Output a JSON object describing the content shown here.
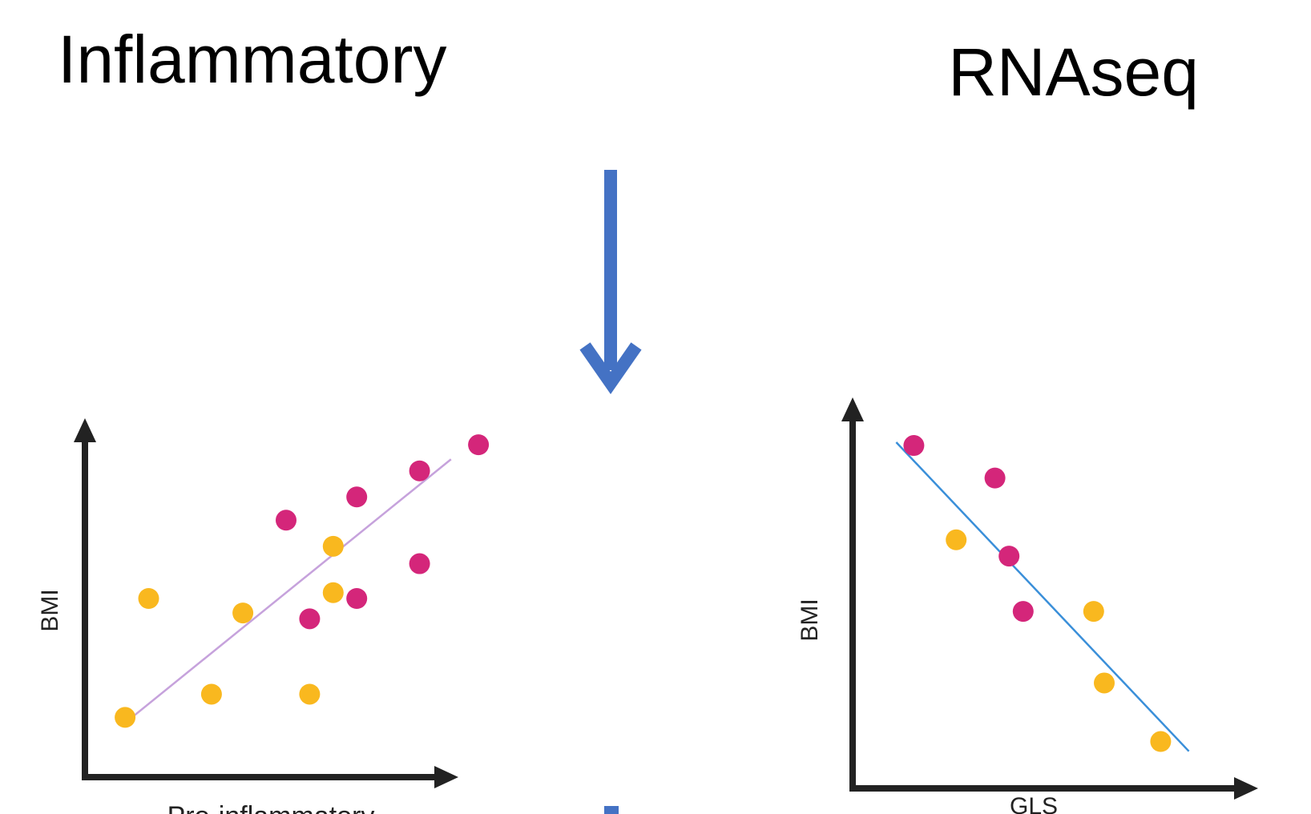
{
  "titles": {
    "left": "Inflammatory",
    "right": "RNAseq"
  },
  "colors": {
    "flow_arrow": "#4472c4",
    "axis": "#222222",
    "magenta": "#d4267a",
    "gold": "#f9b81f",
    "left_trend": "#c6a2dc",
    "right_trend": "#3a8fd9"
  },
  "chart_data": [
    {
      "type": "scatter",
      "xlabel": "Pro-inflammatory",
      "ylabel": "BMI",
      "xlim": [
        0,
        10
      ],
      "ylim": [
        0,
        10
      ],
      "series": [
        {
          "color": "magenta",
          "points": [
            [
              5.0,
              7.7
            ],
            [
              6.8,
              8.5
            ],
            [
              8.4,
              9.4
            ],
            [
              9.9,
              10.3
            ],
            [
              8.4,
              6.2
            ],
            [
              6.8,
              5.0
            ],
            [
              5.6,
              4.3
            ]
          ]
        },
        {
          "color": "gold",
          "points": [
            [
              0.9,
              0.9
            ],
            [
              1.5,
              5.0
            ],
            [
              3.9,
              4.5
            ],
            [
              6.2,
              6.8
            ],
            [
              6.2,
              5.2
            ],
            [
              3.1,
              1.7
            ],
            [
              5.6,
              1.7
            ]
          ]
        }
      ],
      "trend": {
        "from": [
          0.8,
          0.6
        ],
        "to": [
          9.2,
          9.8
        ]
      }
    },
    {
      "type": "scatter",
      "xlabel": "GLS",
      "ylabel": "BMI",
      "xlim": [
        0,
        10
      ],
      "ylim": [
        0,
        10
      ],
      "series": [
        {
          "color": "magenta",
          "points": [
            [
              1.6,
              9.9
            ],
            [
              3.9,
              8.9
            ],
            [
              4.3,
              6.5
            ],
            [
              4.7,
              4.8
            ]
          ]
        },
        {
          "color": "gold",
          "points": [
            [
              2.8,
              7.0
            ],
            [
              6.7,
              4.8
            ],
            [
              7.0,
              2.6
            ],
            [
              8.6,
              0.8
            ]
          ]
        }
      ],
      "trend": {
        "from": [
          1.1,
          10.0
        ],
        "to": [
          9.4,
          0.5
        ]
      }
    }
  ]
}
